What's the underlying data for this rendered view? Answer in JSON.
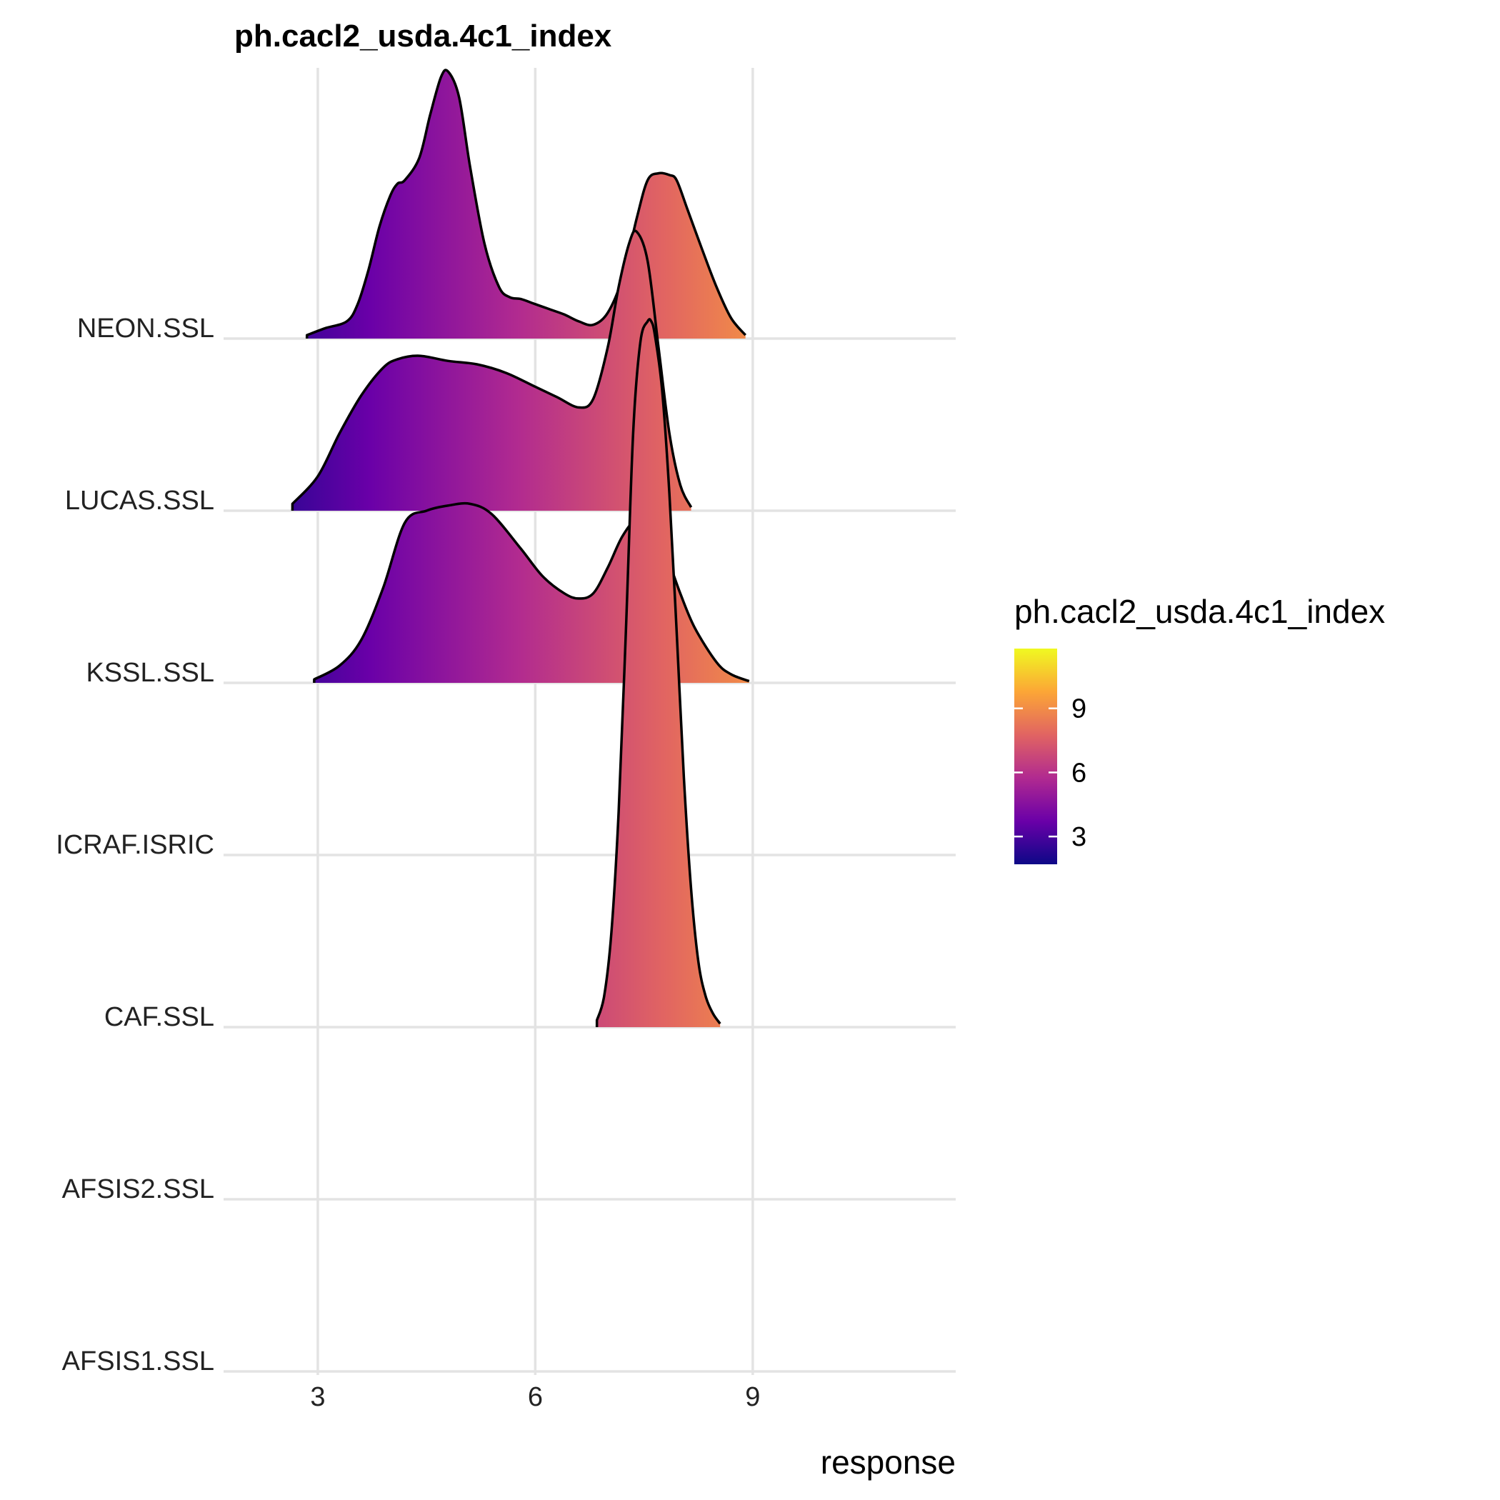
{
  "chart_data": {
    "type": "ridgeline",
    "title": "ph.cacl2_usda.4c1_index",
    "xlabel": "response",
    "ylabel": "",
    "xlim": [
      1.7,
      11.8
    ],
    "x_ticks": [
      "3",
      "6",
      "9"
    ],
    "x_tick_values": [
      3,
      6,
      9
    ],
    "grid": true,
    "legend_position": "right",
    "colorscale": "plasma",
    "categories": [
      "AFSIS1.SSL",
      "AFSIS2.SSL",
      "CAF.SSL",
      "ICRAF.ISRIC",
      "KSSL.SSL",
      "LUCAS.SSL",
      "NEON.SSL"
    ],
    "series": [
      {
        "category": "NEON.SSL",
        "x": [
          2.85,
          3.1,
          3.4,
          3.55,
          3.7,
          3.85,
          4.0,
          4.1,
          4.2,
          4.4,
          4.55,
          4.7,
          4.8,
          4.95,
          5.1,
          5.3,
          5.5,
          5.65,
          5.8,
          6.0,
          6.2,
          6.4,
          6.6,
          6.8,
          7.0,
          7.2,
          7.4,
          7.55,
          7.7,
          7.85,
          7.95,
          8.1,
          8.3,
          8.5,
          8.7,
          8.9
        ],
        "y": [
          0.02,
          0.06,
          0.1,
          0.2,
          0.4,
          0.65,
          0.83,
          0.9,
          0.92,
          1.05,
          1.3,
          1.52,
          1.55,
          1.4,
          1.0,
          0.55,
          0.3,
          0.24,
          0.23,
          0.2,
          0.17,
          0.14,
          0.1,
          0.08,
          0.15,
          0.35,
          0.7,
          0.92,
          0.96,
          0.95,
          0.92,
          0.75,
          0.52,
          0.3,
          0.12,
          0.02
        ]
      },
      {
        "category": "LUCAS.SSL",
        "x": [
          2.65,
          3.0,
          3.3,
          3.6,
          3.9,
          4.1,
          4.4,
          4.8,
          5.2,
          5.6,
          6.0,
          6.3,
          6.6,
          6.8,
          7.0,
          7.15,
          7.3,
          7.4,
          7.55,
          7.7,
          7.85,
          8.0,
          8.15
        ],
        "y": [
          0.04,
          0.2,
          0.45,
          0.67,
          0.83,
          0.88,
          0.9,
          0.87,
          0.85,
          0.8,
          0.72,
          0.66,
          0.6,
          0.65,
          0.95,
          1.3,
          1.56,
          1.62,
          1.45,
          0.95,
          0.45,
          0.15,
          0.02
        ]
      },
      {
        "category": "KSSL.SSL",
        "x": [
          2.95,
          3.3,
          3.6,
          3.9,
          4.2,
          4.5,
          4.8,
          5.1,
          5.4,
          5.8,
          6.1,
          6.4,
          6.6,
          6.8,
          7.0,
          7.2,
          7.4,
          7.6,
          7.8,
          8.0,
          8.2,
          8.5,
          8.7,
          8.95
        ],
        "y": [
          0.02,
          0.1,
          0.25,
          0.55,
          0.93,
          1.0,
          1.03,
          1.04,
          0.98,
          0.78,
          0.62,
          0.52,
          0.49,
          0.52,
          0.67,
          0.85,
          0.95,
          0.92,
          0.75,
          0.52,
          0.32,
          0.12,
          0.05,
          0.01
        ]
      },
      {
        "category": "ICRAF.ISRIC",
        "x": [],
        "y": []
      },
      {
        "category": "CAF.SSL",
        "x": [
          6.85,
          6.95,
          7.05,
          7.15,
          7.25,
          7.35,
          7.45,
          7.55,
          7.6,
          7.65,
          7.75,
          7.85,
          7.95,
          8.05,
          8.15,
          8.25,
          8.35,
          8.45,
          8.55
        ],
        "y": [
          0.04,
          0.18,
          0.55,
          1.25,
          2.3,
          3.45,
          3.98,
          4.1,
          4.1,
          4.02,
          3.7,
          3.1,
          2.3,
          1.45,
          0.8,
          0.38,
          0.18,
          0.08,
          0.02
        ]
      },
      {
        "category": "AFSIS2.SSL",
        "x": [],
        "y": []
      },
      {
        "category": "AFSIS1.SSL",
        "x": [],
        "y": []
      }
    ],
    "colorbar": {
      "title": "ph.cacl2_usda.4c1_index",
      "range": [
        1.7,
        11.8
      ],
      "ticks": [
        "3",
        "6",
        "9"
      ],
      "tick_values": [
        3,
        6,
        9
      ],
      "colors": [
        "#0d0887",
        "#6a00a8",
        "#b12a90",
        "#e16462",
        "#fca636",
        "#f0f921"
      ]
    }
  }
}
